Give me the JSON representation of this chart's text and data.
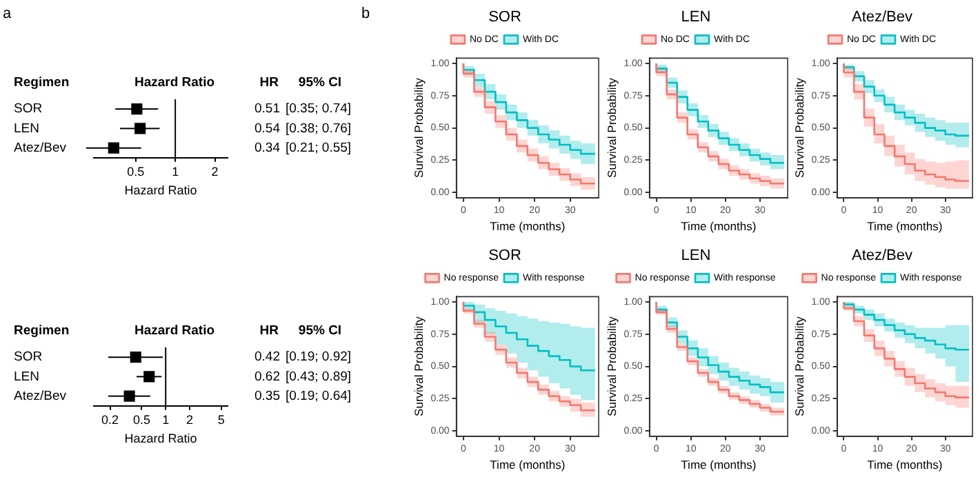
{
  "chart_data": [
    {
      "type": "scatter",
      "orientation": "horizontal",
      "title": "Hazard Ratio",
      "xlabel": "Hazard Ratio",
      "categories": [
        "SOR",
        "LEN",
        "Atez/Bev"
      ],
      "values": [
        0.51,
        0.54,
        0.34
      ],
      "errors": [
        [
          0.35,
          0.74
        ],
        [
          0.38,
          0.76
        ],
        [
          0.21,
          0.55
        ]
      ],
      "color": "#000000",
      "marker": "square",
      "log": "x",
      "xlim": [
        0.24,
        2.5
      ],
      "xticks": [
        0.5,
        1,
        2
      ],
      "ref_lines": [
        {
          "axis": "x",
          "value": 1,
          "color": "#000000"
        }
      ],
      "data_labels": true,
      "tick_labels": "x",
      "annotations": [
        "a",
        "Regimen",
        "HR",
        "95% CI",
        "[0.35; 0.74]",
        "[0.38; 0.76]",
        "[0.21; 0.55]"
      ]
    },
    {
      "type": "step",
      "title": "SOR",
      "xlabel": "Time (months)",
      "ylabel": "Survival Probability",
      "legend": "top",
      "grid": false,
      "x": [
        0,
        3,
        6,
        9,
        12,
        15,
        18,
        21,
        24,
        27,
        30,
        33,
        37
      ],
      "xlim": [
        -2,
        38
      ],
      "xticks": [
        0,
        10,
        20,
        30
      ],
      "ylim": [
        -0.04,
        1.04
      ],
      "yticks": [
        {
          "value": 0,
          "label": "0.00"
        },
        {
          "value": 0.25,
          "label": "0.25"
        },
        {
          "value": 0.5,
          "label": "0.50"
        },
        {
          "value": 0.75,
          "label": "0.75"
        },
        {
          "value": 1,
          "label": "1.00"
        }
      ],
      "annotations": [
        "b"
      ],
      "series": [
        {
          "name": "No DC",
          "color": "#f8766d",
          "values": [
            1,
            0.92,
            0.78,
            0.66,
            0.55,
            0.45,
            0.36,
            0.29,
            0.23,
            0.18,
            0.14,
            0.1,
            0.07
          ],
          "lower": [
            1,
            0.89,
            0.74,
            0.61,
            0.5,
            0.4,
            0.31,
            0.24,
            0.18,
            0.13,
            0.09,
            0.05,
            0.02
          ],
          "upper": [
            1,
            0.95,
            0.82,
            0.71,
            0.6,
            0.5,
            0.41,
            0.34,
            0.28,
            0.23,
            0.19,
            0.15,
            0.12
          ]
        },
        {
          "name": "With DC",
          "color": "#00bfc4",
          "values": [
            1,
            0.95,
            0.87,
            0.78,
            0.7,
            0.62,
            0.56,
            0.5,
            0.45,
            0.41,
            0.37,
            0.33,
            0.3
          ],
          "lower": [
            1,
            0.92,
            0.82,
            0.72,
            0.64,
            0.56,
            0.5,
            0.44,
            0.38,
            0.34,
            0.3,
            0.26,
            0.22
          ],
          "upper": [
            1,
            0.98,
            0.92,
            0.84,
            0.76,
            0.68,
            0.62,
            0.56,
            0.52,
            0.48,
            0.44,
            0.4,
            0.38
          ]
        }
      ]
    },
    {
      "type": "step",
      "title": "LEN",
      "xlabel": "Time (months)",
      "ylabel": "Survival Probability",
      "legend": "top",
      "grid": false,
      "x": [
        0,
        3,
        6,
        9,
        12,
        15,
        18,
        21,
        24,
        27,
        30,
        33,
        37
      ],
      "xlim": [
        -2,
        38
      ],
      "xticks": [
        0,
        10,
        20,
        30
      ],
      "ylim": [
        -0.04,
        1.04
      ],
      "yticks": [
        {
          "value": 0,
          "label": "0.00"
        },
        {
          "value": 0.25,
          "label": "0.25"
        },
        {
          "value": 0.5,
          "label": "0.50"
        },
        {
          "value": 0.75,
          "label": "0.75"
        },
        {
          "value": 1,
          "label": "1.00"
        }
      ],
      "series": [
        {
          "name": "No DC",
          "color": "#f8766d",
          "values": [
            1,
            0.93,
            0.76,
            0.58,
            0.45,
            0.35,
            0.28,
            0.22,
            0.17,
            0.14,
            0.11,
            0.09,
            0.07
          ],
          "lower": [
            1,
            0.9,
            0.72,
            0.54,
            0.41,
            0.31,
            0.24,
            0.18,
            0.13,
            0.1,
            0.07,
            0.05,
            0.03
          ],
          "upper": [
            1,
            0.96,
            0.8,
            0.62,
            0.49,
            0.39,
            0.32,
            0.26,
            0.21,
            0.18,
            0.15,
            0.13,
            0.11
          ]
        },
        {
          "name": "With DC",
          "color": "#00bfc4",
          "values": [
            1,
            0.96,
            0.85,
            0.74,
            0.64,
            0.55,
            0.48,
            0.42,
            0.37,
            0.33,
            0.29,
            0.26,
            0.23
          ],
          "lower": [
            1,
            0.93,
            0.81,
            0.69,
            0.59,
            0.5,
            0.43,
            0.37,
            0.32,
            0.28,
            0.24,
            0.21,
            0.18
          ],
          "upper": [
            1,
            0.99,
            0.89,
            0.79,
            0.69,
            0.6,
            0.53,
            0.47,
            0.42,
            0.38,
            0.34,
            0.31,
            0.29
          ]
        }
      ]
    },
    {
      "type": "step",
      "title": "Atez/Bev",
      "xlabel": "Time (months)",
      "ylabel": "Survival Probability",
      "legend": "top",
      "grid": false,
      "x": [
        0,
        3,
        6,
        9,
        12,
        15,
        18,
        21,
        24,
        27,
        30,
        33,
        37
      ],
      "xlim": [
        -2,
        38
      ],
      "xticks": [
        0,
        10,
        20,
        30
      ],
      "ylim": [
        -0.04,
        1.04
      ],
      "yticks": [
        {
          "value": 0,
          "label": "0.00"
        },
        {
          "value": 0.25,
          "label": "0.25"
        },
        {
          "value": 0.5,
          "label": "0.50"
        },
        {
          "value": 0.75,
          "label": "0.75"
        },
        {
          "value": 1,
          "label": "1.00"
        }
      ],
      "series": [
        {
          "name": "No DC",
          "color": "#f8766d",
          "values": [
            1,
            0.93,
            0.78,
            0.58,
            0.45,
            0.36,
            0.28,
            0.22,
            0.17,
            0.14,
            0.12,
            0.1,
            0.09
          ],
          "lower": [
            1,
            0.89,
            0.72,
            0.51,
            0.38,
            0.28,
            0.2,
            0.14,
            0.09,
            0.06,
            0.04,
            0.03,
            0.03
          ],
          "upper": [
            1,
            0.97,
            0.84,
            0.65,
            0.53,
            0.44,
            0.37,
            0.31,
            0.26,
            0.24,
            0.23,
            0.24,
            0.25
          ]
        },
        {
          "name": "With DC",
          "color": "#00bfc4",
          "values": [
            1,
            0.97,
            0.9,
            0.82,
            0.75,
            0.68,
            0.62,
            0.58,
            0.54,
            0.5,
            0.48,
            0.45,
            0.44
          ],
          "lower": [
            1,
            0.95,
            0.86,
            0.77,
            0.7,
            0.62,
            0.56,
            0.52,
            0.47,
            0.43,
            0.4,
            0.37,
            0.35
          ],
          "upper": [
            1,
            0.99,
            0.94,
            0.87,
            0.8,
            0.74,
            0.68,
            0.64,
            0.61,
            0.58,
            0.56,
            0.54,
            0.54
          ]
        }
      ]
    },
    {
      "type": "scatter",
      "orientation": "horizontal",
      "title": "Hazard Ratio",
      "xlabel": "Hazard Ratio",
      "categories": [
        "SOR",
        "LEN",
        "Atez/Bev"
      ],
      "values": [
        0.42,
        0.62,
        0.35
      ],
      "errors": [
        [
          0.19,
          0.92
        ],
        [
          0.43,
          0.89
        ],
        [
          0.19,
          0.64
        ]
      ],
      "color": "#000000",
      "marker": "square",
      "log": "x",
      "xlim": [
        0.125,
        6
      ],
      "xticks": [
        0.2,
        0.5,
        1,
        2,
        5
      ],
      "ref_lines": [
        {
          "axis": "x",
          "value": 1,
          "color": "#000000"
        }
      ],
      "data_labels": true,
      "tick_labels": "x",
      "annotations": [
        "Regimen",
        "HR",
        "95% CI",
        "[0.19; 0.92]",
        "[0.43; 0.89]",
        "[0.19; 0.64]"
      ]
    },
    {
      "type": "step",
      "title": "SOR",
      "xlabel": "Time (months)",
      "ylabel": "Survival Probability",
      "legend": "top",
      "grid": false,
      "x": [
        0,
        3,
        6,
        9,
        12,
        15,
        18,
        21,
        24,
        27,
        30,
        33,
        37
      ],
      "xlim": [
        -2,
        38
      ],
      "xticks": [
        0,
        10,
        20,
        30
      ],
      "ylim": [
        -0.04,
        1.04
      ],
      "yticks": [
        {
          "value": 0,
          "label": "0.00"
        },
        {
          "value": 0.25,
          "label": "0.25"
        },
        {
          "value": 0.5,
          "label": "0.50"
        },
        {
          "value": 0.75,
          "label": "0.75"
        },
        {
          "value": 1,
          "label": "1.00"
        }
      ],
      "series": [
        {
          "name": "No response",
          "color": "#f8766d",
          "values": [
            1,
            0.93,
            0.83,
            0.73,
            0.63,
            0.53,
            0.45,
            0.38,
            0.32,
            0.27,
            0.23,
            0.2,
            0.16
          ],
          "lower": [
            1,
            0.91,
            0.8,
            0.69,
            0.59,
            0.49,
            0.41,
            0.34,
            0.28,
            0.23,
            0.19,
            0.15,
            0.11
          ],
          "upper": [
            1,
            0.95,
            0.86,
            0.77,
            0.67,
            0.57,
            0.49,
            0.42,
            0.36,
            0.31,
            0.27,
            0.25,
            0.22
          ]
        },
        {
          "name": "With response",
          "color": "#00bfc4",
          "values": [
            1,
            0.97,
            0.92,
            0.86,
            0.81,
            0.76,
            0.71,
            0.66,
            0.62,
            0.58,
            0.55,
            0.5,
            0.47
          ],
          "lower": [
            1,
            0.93,
            0.84,
            0.75,
            0.67,
            0.6,
            0.53,
            0.47,
            0.42,
            0.37,
            0.33,
            0.28,
            0.24
          ],
          "upper": [
            1,
            1,
            0.98,
            0.95,
            0.93,
            0.91,
            0.89,
            0.87,
            0.85,
            0.84,
            0.83,
            0.81,
            0.8
          ]
        }
      ]
    },
    {
      "type": "step",
      "title": "LEN",
      "xlabel": "Time (months)",
      "ylabel": "Survival Probability",
      "legend": "top",
      "grid": false,
      "x": [
        0,
        3,
        6,
        9,
        12,
        15,
        18,
        21,
        24,
        27,
        30,
        33,
        37
      ],
      "xlim": [
        -2,
        38
      ],
      "xticks": [
        0,
        10,
        20,
        30
      ],
      "ylim": [
        -0.04,
        1.04
      ],
      "yticks": [
        {
          "value": 0,
          "label": "0.00"
        },
        {
          "value": 0.25,
          "label": "0.25"
        },
        {
          "value": 0.5,
          "label": "0.50"
        },
        {
          "value": 0.75,
          "label": "0.75"
        },
        {
          "value": 1,
          "label": "1.00"
        }
      ],
      "series": [
        {
          "name": "No response",
          "color": "#f8766d",
          "values": [
            1,
            0.92,
            0.79,
            0.65,
            0.54,
            0.45,
            0.38,
            0.32,
            0.27,
            0.24,
            0.21,
            0.18,
            0.15
          ],
          "lower": [
            1,
            0.9,
            0.76,
            0.62,
            0.51,
            0.42,
            0.35,
            0.29,
            0.24,
            0.21,
            0.18,
            0.15,
            0.12
          ],
          "upper": [
            1,
            0.94,
            0.82,
            0.68,
            0.57,
            0.48,
            0.41,
            0.35,
            0.3,
            0.27,
            0.24,
            0.21,
            0.18
          ]
        },
        {
          "name": "With response",
          "color": "#00bfc4",
          "values": [
            1,
            0.94,
            0.84,
            0.73,
            0.64,
            0.57,
            0.51,
            0.46,
            0.42,
            0.39,
            0.36,
            0.34,
            0.3
          ],
          "lower": [
            1,
            0.91,
            0.8,
            0.68,
            0.58,
            0.5,
            0.44,
            0.39,
            0.35,
            0.32,
            0.29,
            0.27,
            0.22
          ],
          "upper": [
            1,
            0.97,
            0.88,
            0.78,
            0.7,
            0.64,
            0.58,
            0.53,
            0.49,
            0.46,
            0.43,
            0.41,
            0.38
          ]
        }
      ]
    },
    {
      "type": "step",
      "title": "Atez/Bev",
      "xlabel": "Time (months)",
      "ylabel": "Survival Probability",
      "legend": "top",
      "grid": false,
      "x": [
        0,
        3,
        6,
        9,
        12,
        15,
        18,
        21,
        24,
        27,
        30,
        33,
        37
      ],
      "xlim": [
        -2,
        38
      ],
      "xticks": [
        0,
        10,
        20,
        30
      ],
      "ylim": [
        -0.04,
        1.04
      ],
      "yticks": [
        {
          "value": 0,
          "label": "0.00"
        },
        {
          "value": 0.25,
          "label": "0.25"
        },
        {
          "value": 0.5,
          "label": "0.50"
        },
        {
          "value": 0.75,
          "label": "0.75"
        },
        {
          "value": 1,
          "label": "1.00"
        }
      ],
      "series": [
        {
          "name": "No response",
          "color": "#f8766d",
          "values": [
            1,
            0.95,
            0.85,
            0.74,
            0.64,
            0.56,
            0.48,
            0.42,
            0.37,
            0.33,
            0.3,
            0.27,
            0.26
          ],
          "lower": [
            1,
            0.93,
            0.81,
            0.69,
            0.58,
            0.5,
            0.42,
            0.35,
            0.3,
            0.26,
            0.23,
            0.2,
            0.18
          ],
          "upper": [
            1,
            0.97,
            0.89,
            0.79,
            0.7,
            0.62,
            0.54,
            0.49,
            0.44,
            0.4,
            0.37,
            0.35,
            0.35
          ]
        },
        {
          "name": "With response",
          "color": "#00bfc4",
          "values": [
            1,
            0.98,
            0.94,
            0.9,
            0.86,
            0.82,
            0.78,
            0.75,
            0.72,
            0.7,
            0.67,
            0.64,
            0.63
          ],
          "lower": [
            1,
            0.96,
            0.91,
            0.86,
            0.81,
            0.77,
            0.72,
            0.68,
            0.64,
            0.6,
            0.56,
            0.5,
            0.38
          ],
          "upper": [
            1,
            1,
            0.97,
            0.94,
            0.91,
            0.87,
            0.84,
            0.82,
            0.8,
            0.8,
            0.8,
            0.82,
            0.82
          ]
        }
      ]
    }
  ]
}
